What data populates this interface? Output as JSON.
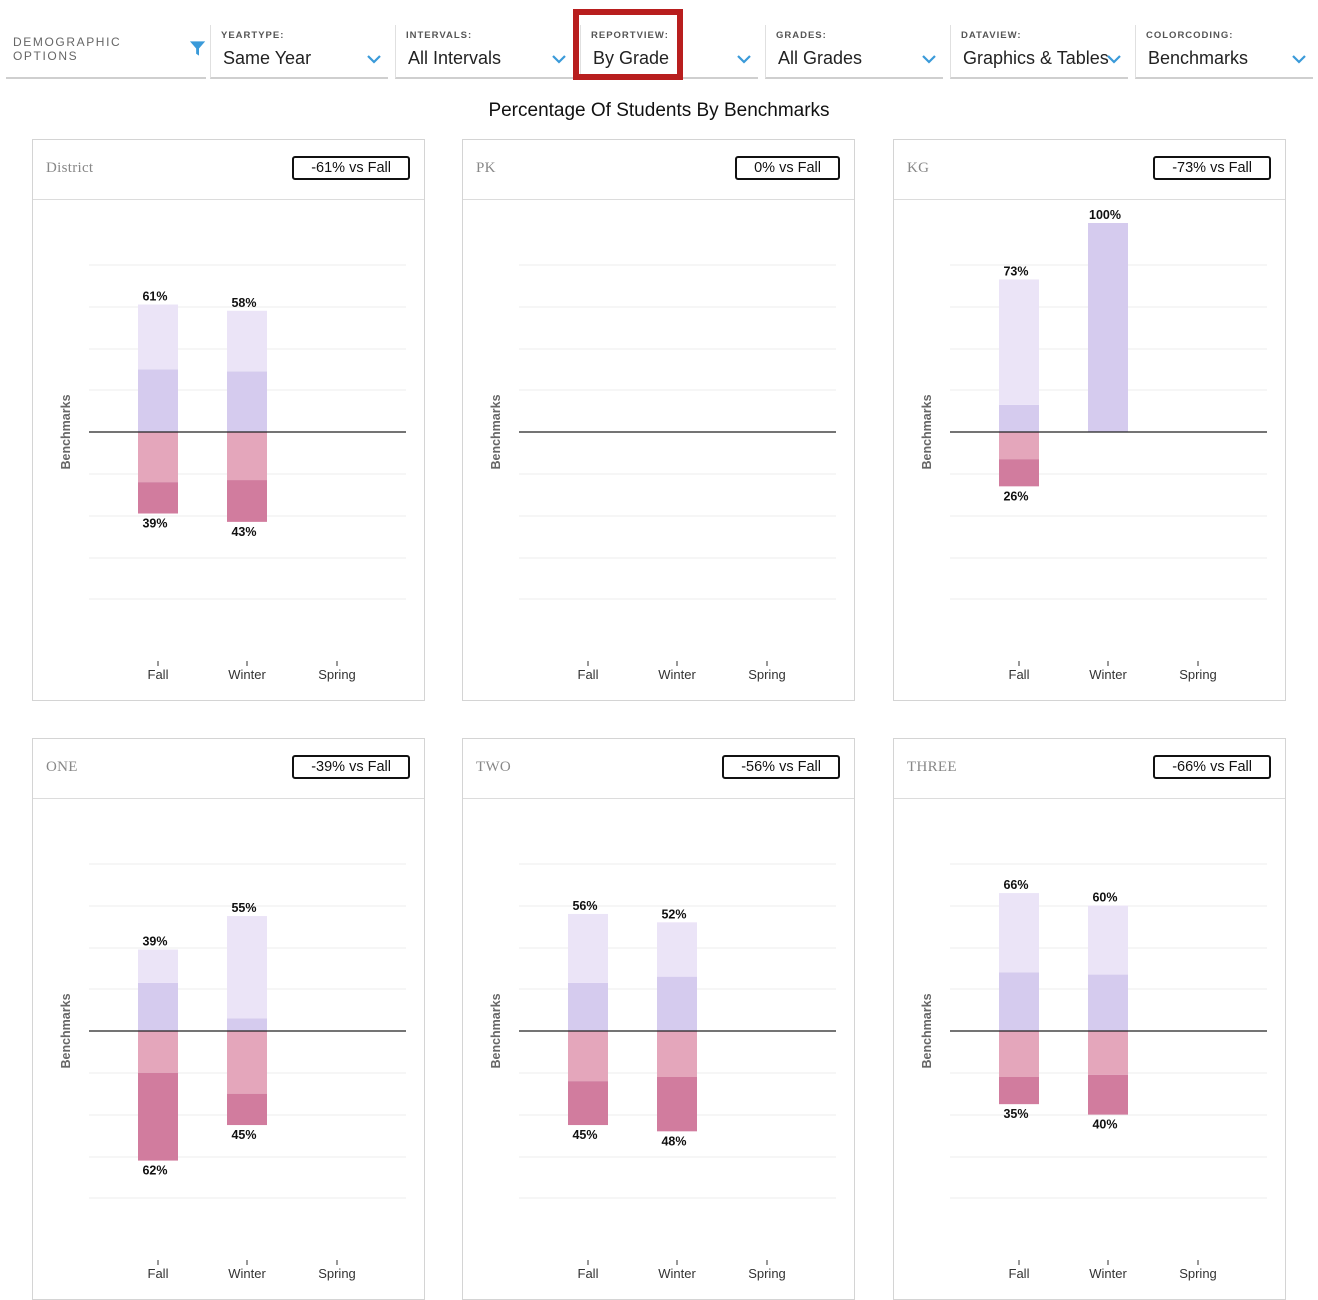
{
  "toolbar": {
    "demographic_label": "DEMOGRAPHIC OPTIONS",
    "filter_icon": "filter-icon",
    "accent_color": "#3a9ad9",
    "dropdowns": [
      {
        "label": "YEARTYPE:",
        "value": "Same Year"
      },
      {
        "label": "INTERVALS:",
        "value": "All Intervals"
      },
      {
        "label": "REPORTVIEW:",
        "value": "By Grade"
      },
      {
        "label": "GRADES:",
        "value": "All Grades"
      },
      {
        "label": "DATAVIEW:",
        "value": "Graphics & Tables"
      },
      {
        "label": "COLORCODING:",
        "value": "Benchmarks"
      }
    ],
    "highlight_color": "#b81e1e"
  },
  "page_title": "Percentage Of Students By Benchmarks",
  "colors": {
    "above_outer": "#ebe4f7",
    "above_inner": "#d5cbee",
    "below_inner": "#e4a6bb",
    "below_outer": "#d17c9e"
  },
  "chart_data": [
    {
      "type": "bar",
      "title": "District",
      "badge": "-61% vs Fall",
      "ylabel": "Benchmarks",
      "categories": [
        "Fall",
        "Winter",
        "Spring"
      ],
      "ylim": [
        -100,
        100
      ],
      "series": [
        {
          "values": [
            61,
            58,
            null
          ]
        },
        {
          "values": [
            39,
            43,
            null
          ]
        }
      ],
      "segments": [
        {
          "above_inner": 30,
          "above_outer": 31,
          "below_inner": 24,
          "below_outer": 15
        },
        {
          "above_inner": 29,
          "above_outer": 29,
          "below_inner": 23,
          "below_outer": 20
        },
        null
      ]
    },
    {
      "type": "bar",
      "title": "PK",
      "badge": "0% vs Fall",
      "ylabel": "Benchmarks",
      "categories": [
        "Fall",
        "Winter",
        "Spring"
      ],
      "ylim": [
        -100,
        100
      ],
      "series": [
        {
          "values": [
            null,
            null,
            null
          ]
        },
        {
          "values": [
            null,
            null,
            null
          ]
        }
      ],
      "segments": [
        null,
        null,
        null
      ]
    },
    {
      "type": "bar",
      "title": "KG",
      "badge": "-73% vs Fall",
      "ylabel": "Benchmarks",
      "categories": [
        "Fall",
        "Winter",
        "Spring"
      ],
      "ylim": [
        -100,
        100
      ],
      "series": [
        {
          "values": [
            73,
            100,
            null
          ]
        },
        {
          "values": [
            26,
            null,
            null
          ]
        }
      ],
      "segments": [
        {
          "above_inner": 13,
          "above_outer": 60,
          "below_inner": 13,
          "below_outer": 13
        },
        {
          "above_inner": 100,
          "above_outer": 0,
          "below_inner": 0,
          "below_outer": 0
        },
        null
      ]
    },
    {
      "type": "bar",
      "title": "ONE",
      "badge": "-39% vs Fall",
      "ylabel": "Benchmarks",
      "categories": [
        "Fall",
        "Winter",
        "Spring"
      ],
      "ylim": [
        -100,
        100
      ],
      "series": [
        {
          "values": [
            39,
            55,
            null
          ]
        },
        {
          "values": [
            62,
            45,
            null
          ]
        }
      ],
      "segments": [
        {
          "above_inner": 23,
          "above_outer": 16,
          "below_inner": 20,
          "below_outer": 42
        },
        {
          "above_inner": 6,
          "above_outer": 49,
          "below_inner": 30,
          "below_outer": 15
        },
        null
      ]
    },
    {
      "type": "bar",
      "title": "TWO",
      "badge": "-56% vs Fall",
      "ylabel": "Benchmarks",
      "categories": [
        "Fall",
        "Winter",
        "Spring"
      ],
      "ylim": [
        -100,
        100
      ],
      "series": [
        {
          "values": [
            56,
            52,
            null
          ]
        },
        {
          "values": [
            45,
            48,
            null
          ]
        }
      ],
      "segments": [
        {
          "above_inner": 23,
          "above_outer": 33,
          "below_inner": 24,
          "below_outer": 21
        },
        {
          "above_inner": 26,
          "above_outer": 26,
          "below_inner": 22,
          "below_outer": 26
        },
        null
      ]
    },
    {
      "type": "bar",
      "title": "THREE",
      "badge": "-66% vs Fall",
      "ylabel": "Benchmarks",
      "categories": [
        "Fall",
        "Winter",
        "Spring"
      ],
      "ylim": [
        -100,
        100
      ],
      "series": [
        {
          "values": [
            66,
            60,
            null
          ]
        },
        {
          "values": [
            35,
            40,
            null
          ]
        }
      ],
      "segments": [
        {
          "above_inner": 28,
          "above_outer": 38,
          "below_inner": 22,
          "below_outer": 13
        },
        {
          "above_inner": 27,
          "above_outer": 33,
          "below_inner": 21,
          "below_outer": 19
        },
        null
      ]
    }
  ]
}
